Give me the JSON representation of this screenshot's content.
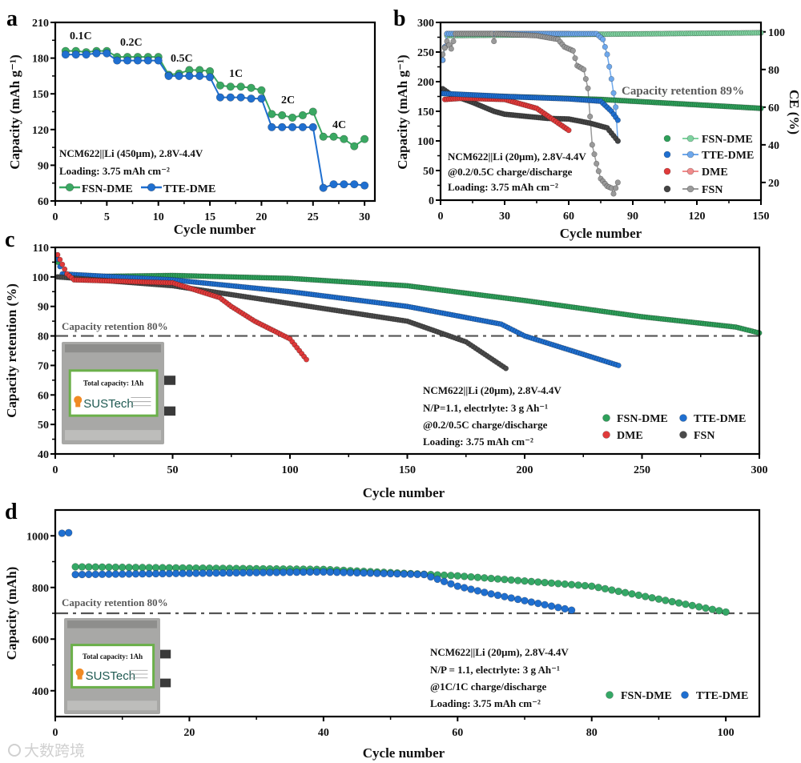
{
  "chart_data": [
    {
      "panel": "a",
      "type": "line",
      "title": "",
      "xlabel": "Cycle number",
      "ylabel": "Capacity (mAh g⁻¹)",
      "xlim": [
        0,
        31
      ],
      "ylim": [
        60,
        210
      ],
      "xticks": [
        0,
        5,
        10,
        15,
        20,
        25,
        30
      ],
      "yticks": [
        60,
        90,
        120,
        150,
        180,
        210
      ],
      "grid": false,
      "rate_labels": [
        "0.1C",
        "0.2C",
        "0.5C",
        "1C",
        "2C",
        "4C"
      ],
      "info": [
        "NCM622||Li (450μm), 2.8V-4.4V",
        "Loading: 3.75 mAh cm⁻²"
      ],
      "legend_position": "bottom-left",
      "series": [
        {
          "name": "FSN-DME",
          "color": "#3aa862",
          "x": [
            1,
            2,
            3,
            4,
            5,
            6,
            7,
            8,
            9,
            10,
            11,
            12,
            13,
            14,
            15,
            16,
            17,
            18,
            19,
            20,
            21,
            22,
            23,
            24,
            25,
            26,
            27,
            28,
            29,
            30
          ],
          "y": [
            186,
            186,
            185,
            186,
            186,
            181,
            181,
            181,
            181,
            181,
            166,
            167,
            170,
            170,
            169,
            157,
            156,
            156,
            155,
            153,
            133,
            132,
            130,
            132,
            135,
            114,
            114,
            112,
            106,
            112
          ]
        },
        {
          "name": "TTE-DME",
          "color": "#1f6fd0",
          "x": [
            1,
            2,
            3,
            4,
            5,
            6,
            7,
            8,
            9,
            10,
            11,
            12,
            13,
            14,
            15,
            16,
            17,
            18,
            19,
            20,
            21,
            22,
            23,
            24,
            25,
            26,
            27,
            28,
            29,
            30
          ],
          "y": [
            183,
            183,
            183,
            184,
            184,
            178,
            178,
            178,
            178,
            178,
            165,
            165,
            165,
            165,
            164,
            147,
            147,
            147,
            146,
            146,
            122,
            122,
            122,
            122,
            122,
            71,
            74,
            74,
            74,
            73
          ]
        }
      ]
    },
    {
      "panel": "b",
      "type": "scatter",
      "title": "",
      "xlabel": "Cycle number",
      "ylabel": "Capacity (mAh g⁻¹)",
      "y2label": "CE (%)",
      "xlim": [
        0,
        150
      ],
      "ylim": [
        0,
        300
      ],
      "y2lim": [
        10.6,
        105
      ],
      "xticks": [
        0,
        30,
        60,
        90,
        120,
        150
      ],
      "yticks": [
        0,
        50,
        100,
        150,
        200,
        250,
        300
      ],
      "y2ticks": [
        20,
        40,
        60,
        80,
        100
      ],
      "grid": false,
      "annotation": "Capacity retention 89%",
      "info": [
        "NCM622||Li (20μm), 2.8V-4.4V",
        "@0.2/0.5C charge/discharge",
        "Loading: 3.75 mAh cm⁻²"
      ],
      "legend_position": "bottom-right",
      "series": [
        {
          "name": "FSN-DME",
          "axis": "capacity",
          "color": "#2ea05a",
          "points": [
            [
              1,
              185
            ],
            [
              5,
              178
            ],
            [
              30,
              175
            ],
            [
              75,
              170
            ],
            [
              150,
              155
            ]
          ]
        },
        {
          "name": "TTE-DME",
          "axis": "capacity",
          "color": "#1f6fd0",
          "points": [
            [
              1,
              180
            ],
            [
              30,
              175
            ],
            [
              60,
              171
            ],
            [
              75,
              167
            ],
            [
              80,
              150
            ],
            [
              83,
              135
            ]
          ]
        },
        {
          "name": "DME",
          "axis": "capacity",
          "color": "#e03a3a",
          "points": [
            [
              2,
              170
            ],
            [
              10,
              172
            ],
            [
              30,
              170
            ],
            [
              45,
              155
            ],
            [
              60,
              118
            ]
          ]
        },
        {
          "name": "FSN",
          "axis": "capacity",
          "color": "#444444",
          "points": [
            [
              1,
              188
            ],
            [
              5,
              178
            ],
            [
              15,
              165
            ],
            [
              25,
              150
            ],
            [
              30,
              145
            ],
            [
              50,
              138
            ],
            [
              60,
              137
            ],
            [
              70,
              130
            ],
            [
              78,
              122
            ],
            [
              83,
              100
            ]
          ]
        },
        {
          "name": "FSN-DME",
          "axis": "CE",
          "color": "#7fd3a0",
          "points": [
            [
              1,
              85
            ],
            [
              3,
              98
            ],
            [
              150,
              99.5
            ]
          ]
        },
        {
          "name": "TTE-DME",
          "axis": "CE",
          "color": "#6ea8ec",
          "points": [
            [
              1,
              85
            ],
            [
              3,
              99
            ],
            [
              73,
              99
            ],
            [
              76,
              96
            ],
            [
              78,
              88
            ],
            [
              80,
              75
            ],
            [
              82,
              60
            ],
            [
              83,
              42
            ]
          ]
        },
        {
          "name": "DME",
          "axis": "CE",
          "color": "#f08c8c",
          "points": [
            [
              1,
              85
            ],
            [
              3,
              99
            ],
            [
              60,
              99
            ]
          ]
        },
        {
          "name": "FSN",
          "axis": "CE",
          "color": "#9a9a9a",
          "points": [
            [
              1,
              88
            ],
            [
              3,
              95
            ],
            [
              5,
              91
            ],
            [
              7,
              99
            ],
            [
              24,
              99
            ],
            [
              25,
              95
            ],
            [
              26,
              99
            ],
            [
              45,
              98
            ],
            [
              50,
              97
            ],
            [
              55,
              96
            ],
            [
              58,
              92
            ],
            [
              62,
              90
            ],
            [
              64,
              82
            ],
            [
              67,
              80
            ],
            [
              69,
              70
            ],
            [
              71,
              40
            ],
            [
              73,
              30
            ],
            [
              75,
              22
            ],
            [
              78,
              18
            ],
            [
              80,
              17
            ],
            [
              81,
              14
            ],
            [
              83,
              20
            ]
          ]
        }
      ]
    },
    {
      "panel": "c",
      "type": "scatter",
      "title": "",
      "xlabel": "Cycle number",
      "ylabel": "Capacity retention (%)",
      "xlim": [
        0,
        300
      ],
      "ylim": [
        40,
        110
      ],
      "xticks": [
        0,
        50,
        100,
        150,
        200,
        250,
        300
      ],
      "yticks": [
        40,
        50,
        60,
        70,
        80,
        90,
        100,
        110
      ],
      "grid": false,
      "reference_line": {
        "value": 80,
        "label": "Capacity retention 80%"
      },
      "inset": {
        "label": "Total capacity: 1Ah",
        "logo": "SUSTech"
      },
      "info": [
        "NCM622||Li (20μm), 2.8V-4.4V",
        "N/P=1.1, electrlyte: 3 g Ah⁻¹",
        "@0.2/0.5C charge/discharge",
        "Loading: 3.75 mAh cm⁻²"
      ],
      "legend_position": "bottom-right",
      "series": [
        {
          "name": "FSN-DME",
          "color": "#2ea05a",
          "points": [
            [
              1,
              105
            ],
            [
              2,
              100
            ],
            [
              50,
              100.5
            ],
            [
              100,
              99.5
            ],
            [
              150,
              97
            ],
            [
              200,
              92
            ],
            [
              250,
              86.5
            ],
            [
              290,
              83
            ],
            [
              300,
              81
            ]
          ]
        },
        {
          "name": "TTE-DME",
          "color": "#1f6fd0",
          "points": [
            [
              1,
              106
            ],
            [
              3,
              101
            ],
            [
              50,
              99
            ],
            [
              100,
              95
            ],
            [
              150,
              90
            ],
            [
              190,
              84
            ],
            [
              200,
              80
            ],
            [
              220,
              75
            ],
            [
              240,
              70
            ]
          ]
        },
        {
          "name": "DME",
          "color": "#e03a3a",
          "points": [
            [
              1,
              107.5
            ],
            [
              5,
              101
            ],
            [
              8,
              99
            ],
            [
              50,
              98
            ],
            [
              70,
              93
            ],
            [
              75,
              90
            ],
            [
              85,
              85
            ],
            [
              95,
              81
            ],
            [
              100,
              79
            ],
            [
              107,
              72
            ]
          ]
        },
        {
          "name": "FSN",
          "color": "#4a4a4a",
          "points": [
            [
              1,
              100
            ],
            [
              50,
              97
            ],
            [
              100,
              91
            ],
            [
              150,
              85
            ],
            [
              175,
              78
            ],
            [
              192,
              69
            ]
          ]
        }
      ]
    },
    {
      "panel": "d",
      "type": "scatter",
      "title": "",
      "xlabel": "Cycle number",
      "ylabel": "Capacity (mAh)",
      "xlim": [
        0,
        105
      ],
      "ylim": [
        300,
        1100
      ],
      "xticks": [
        0,
        20,
        40,
        60,
        80,
        100
      ],
      "yticks": [
        400,
        600,
        800,
        1000
      ],
      "grid": false,
      "reference_line": {
        "value": 700,
        "label": "Capacity retention 80%"
      },
      "inset": {
        "label": "Total capacity: 1Ah",
        "logo": "SUSTech"
      },
      "info": [
        "NCM622||Li (20μm), 2.8V-4.4V",
        "N/P = 1.1, electrlyte: 3 g Ah⁻¹",
        "@1C/1C charge/discharge",
        "Loading: 3.75 mAh cm⁻²"
      ],
      "legend_position": "bottom-right",
      "series": [
        {
          "name": "FSN-DME",
          "color": "#35a866",
          "points": [
            [
              3,
              880
            ],
            [
              40,
              870
            ],
            [
              60,
              845
            ],
            [
              80,
              805
            ],
            [
              100,
              705
            ]
          ]
        },
        {
          "name": "TTE-DME",
          "color": "#1f6fd0",
          "points": [
            [
              1,
              1010
            ],
            [
              2,
              1012
            ],
            [
              3,
              850
            ],
            [
              40,
              860
            ],
            [
              55,
              850
            ],
            [
              60,
              805
            ],
            [
              65,
              775
            ],
            [
              77,
              712
            ]
          ]
        }
      ]
    }
  ],
  "watermark": "大数跨境"
}
